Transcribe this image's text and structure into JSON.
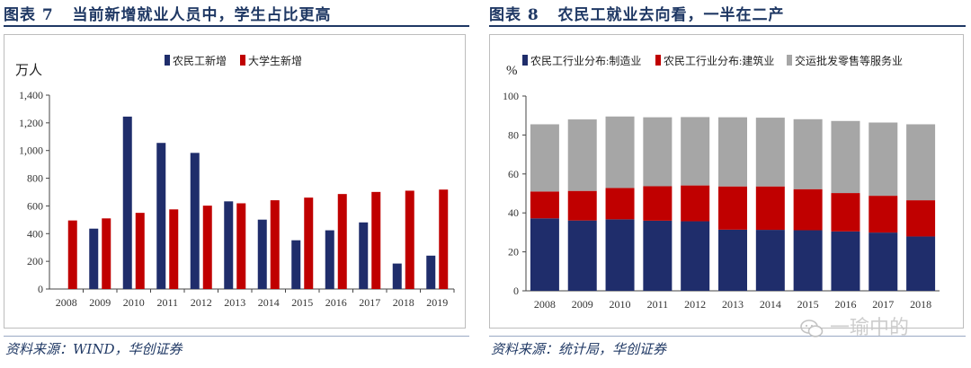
{
  "left": {
    "figure_label": "图表 7",
    "title": "当前新增就业人员中，学生占比更高",
    "source": "资料来源：WIND，华创证券",
    "chart_data": {
      "type": "bar",
      "title": "",
      "ylabel": "万人",
      "xlabel": "",
      "ylim": [
        0,
        1400
      ],
      "yticks": [
        "0",
        "200",
        "400",
        "600",
        "800",
        "1,000",
        "1,200",
        "1,400"
      ],
      "ytick_values": [
        0,
        200,
        400,
        600,
        800,
        1000,
        1200,
        1400
      ],
      "categories": [
        "2008",
        "2009",
        "2010",
        "2011",
        "2012",
        "2013",
        "2014",
        "2015",
        "2016",
        "2017",
        "2018",
        "2019"
      ],
      "series": [
        {
          "name": "农民工新增",
          "color": "#1f2d6b",
          "values": [
            0,
            436,
            1245,
            1055,
            983,
            633,
            501,
            352,
            424,
            481,
            184,
            241
          ]
        },
        {
          "name": "大学生新增",
          "color": "#c00000",
          "values": [
            495,
            510,
            550,
            575,
            602,
            619,
            641,
            660,
            686,
            701,
            710,
            718
          ]
        }
      ],
      "legend_position": "top-center"
    }
  },
  "right": {
    "figure_label": "图表 8",
    "title": "农民工就业去向看，一半在二产",
    "source": "资料来源：统计局，华创证券",
    "chart_data": {
      "type": "bar",
      "stacked": true,
      "title": "",
      "ylabel": "%",
      "xlabel": "",
      "ylim": [
        0,
        100
      ],
      "yticks": [
        "0",
        "20",
        "40",
        "60",
        "80",
        "100"
      ],
      "ytick_values": [
        0,
        20,
        40,
        60,
        80,
        100
      ],
      "categories": [
        "2008",
        "2009",
        "2010",
        "2011",
        "2012",
        "2013",
        "2014",
        "2015",
        "2016",
        "2017",
        "2018"
      ],
      "series": [
        {
          "name": "农民工行业分布:制造业",
          "color": "#1f2d6b",
          "values": [
            37.2,
            36.1,
            36.7,
            36.0,
            35.7,
            31.4,
            31.3,
            31.1,
            30.5,
            29.9,
            27.9
          ]
        },
        {
          "name": "农民工行业分布:建筑业",
          "color": "#c00000",
          "values": [
            13.8,
            15.2,
            16.1,
            17.7,
            18.4,
            22.2,
            22.3,
            21.1,
            19.7,
            18.9,
            18.6
          ]
        },
        {
          "name": "交运批发零售等服务业",
          "color": "#a6a6a6",
          "values": [
            34.5,
            36.7,
            36.7,
            35.4,
            35.1,
            35.5,
            35.3,
            35.9,
            37.0,
            37.6,
            39.0
          ]
        }
      ],
      "legend_position": "top"
    },
    "watermark": "一瑜中的"
  }
}
